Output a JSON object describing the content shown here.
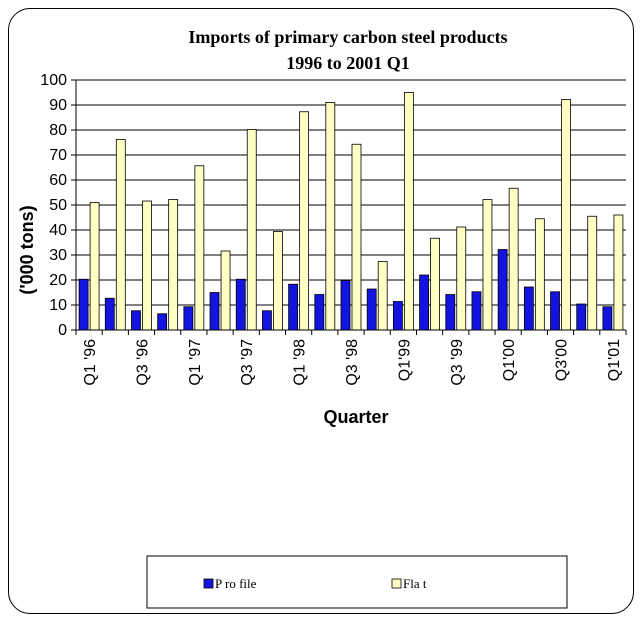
{
  "chart_data": {
    "type": "bar",
    "title": "Imports of primary carbon steel products",
    "subtitle": "1996 to 2001 Q1",
    "xlabel": "Quarter",
    "ylabel": "('000 tons)",
    "ylim": [
      0,
      100
    ],
    "yticks": [
      0,
      10,
      20,
      30,
      40,
      50,
      60,
      70,
      80,
      90,
      100
    ],
    "grid": true,
    "legend_position": "bottom",
    "tick_labels": [
      "Q1 '96",
      "Q3 '96",
      "Q1 '97",
      "Q3 '97",
      "Q1 '98",
      "Q3 '98",
      "Q1'99",
      "Q3 '99",
      "Q1'00",
      "Q3'00",
      "Q1'01"
    ],
    "tick_label_every": 2,
    "categories": [
      "Q1 '96",
      "Q2 '96",
      "Q3 '96",
      "Q4 '96",
      "Q1 '97",
      "Q2 '97",
      "Q3 '97",
      "Q4 '97",
      "Q1 '98",
      "Q2 '98",
      "Q3 '98",
      "Q4 '98",
      "Q1'99",
      "Q2 '99",
      "Q3 '99",
      "Q4 '99",
      "Q1'00",
      "Q2 '00",
      "Q3'00",
      "Q4 '00",
      "Q1'01"
    ],
    "series": [
      {
        "name": "P ro file",
        "color": "#1414e0",
        "values": [
          20.3,
          12.7,
          7.7,
          6.5,
          9.3,
          15.0,
          20.3,
          7.7,
          18.3,
          14.2,
          19.8,
          16.4,
          11.4,
          22.0,
          14.2,
          15.3,
          32.2,
          17.2,
          15.3,
          10.4,
          9.3
        ]
      },
      {
        "name": "Fla t",
        "color": "#ffffc4",
        "values": [
          51.0,
          76.2,
          51.6,
          52.2,
          65.7,
          31.6,
          80.2,
          39.4,
          87.3,
          91.0,
          74.3,
          27.4,
          95.0,
          36.7,
          41.2,
          52.2,
          56.7,
          44.5,
          92.2,
          45.5,
          46.0
        ]
      }
    ]
  }
}
